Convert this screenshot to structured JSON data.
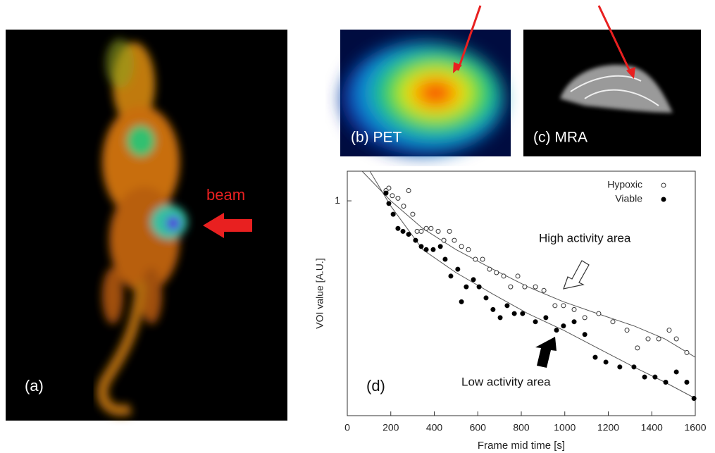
{
  "panels": {
    "a": "(a)",
    "beam": "beam",
    "b": "(b) PET",
    "c": "(c) MRA"
  },
  "chart_data": {
    "type": "scatter",
    "panel_label": "(d)",
    "xlabel": "Frame mid time [s]",
    "ylabel": "VOI value [A.U.]",
    "xlim": [
      0,
      1600
    ],
    "xticks": [
      0,
      200,
      400,
      600,
      800,
      1000,
      1200,
      1400,
      1600
    ],
    "ylim": [
      0.44,
      1.12
    ],
    "yticks": [
      1
    ],
    "log_y": true,
    "legend": "upper right",
    "series": [
      {
        "name": "Hypoxic",
        "marker": "open",
        "color": "#333333",
        "x": [
          178,
          191,
          207,
          233,
          259,
          282,
          301,
          321,
          340,
          363,
          385,
          418,
          444,
          470,
          492,
          525,
          557,
          589,
          622,
          654,
          686,
          719,
          751,
          784,
          816,
          865,
          904,
          955,
          994,
          1043,
          1092,
          1156,
          1221,
          1286,
          1334,
          1383,
          1432,
          1480,
          1513,
          1561
        ],
        "values": [
          1.04,
          1.05,
          1.02,
          1.01,
          0.98,
          1.04,
          0.95,
          0.89,
          0.89,
          0.9,
          0.9,
          0.89,
          0.86,
          0.89,
          0.86,
          0.84,
          0.83,
          0.8,
          0.8,
          0.77,
          0.76,
          0.75,
          0.72,
          0.75,
          0.72,
          0.72,
          0.71,
          0.67,
          0.67,
          0.66,
          0.64,
          0.65,
          0.63,
          0.61,
          0.57,
          0.59,
          0.59,
          0.61,
          0.59,
          0.56
        ]
      },
      {
        "name": "Viable",
        "marker": "filled",
        "color": "#000000",
        "x": [
          178,
          191,
          211,
          233,
          256,
          282,
          314,
          340,
          363,
          395,
          428,
          450,
          476,
          508,
          525,
          547,
          580,
          606,
          638,
          670,
          703,
          735,
          768,
          806,
          865,
          913,
          962,
          994,
          1043,
          1092,
          1140,
          1189,
          1253,
          1318,
          1367,
          1415,
          1464,
          1513,
          1561,
          1594
        ],
        "values": [
          1.03,
          0.99,
          0.95,
          0.9,
          0.89,
          0.88,
          0.86,
          0.84,
          0.83,
          0.83,
          0.84,
          0.8,
          0.75,
          0.77,
          0.68,
          0.72,
          0.74,
          0.72,
          0.69,
          0.66,
          0.64,
          0.67,
          0.65,
          0.65,
          0.63,
          0.64,
          0.61,
          0.62,
          0.63,
          0.6,
          0.55,
          0.54,
          0.53,
          0.53,
          0.51,
          0.51,
          0.5,
          0.52,
          0.5,
          0.47
        ]
      }
    ],
    "fits": [
      {
        "color": "#555555",
        "x": [
          68,
          200,
          347,
          500,
          670,
          830,
          994,
          1150,
          1318,
          1460,
          1600
        ],
        "values": [
          1.12,
          1.0,
          0.9,
          0.83,
          0.77,
          0.72,
          0.68,
          0.65,
          0.62,
          0.59,
          0.55
        ]
      },
      {
        "color": "#555555",
        "x": [
          104,
          200,
          347,
          500,
          670,
          830,
          994,
          1150,
          1318,
          1460,
          1600
        ],
        "values": [
          1.12,
          0.98,
          0.83,
          0.76,
          0.7,
          0.65,
          0.61,
          0.57,
          0.53,
          0.5,
          0.47
        ]
      }
    ],
    "annotations": [
      "High activity area",
      "Low activity area"
    ]
  }
}
